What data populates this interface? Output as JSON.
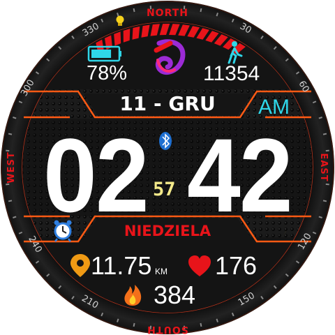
{
  "compass": {
    "north": "NORTH",
    "east": "EAST",
    "south": "SOUTH",
    "west": "WEST"
  },
  "bezel_numbers": {
    "n30": "30",
    "n60": "60",
    "n120": "120",
    "n150": "150",
    "n210": "210",
    "n240": "240",
    "n300": "300",
    "n330": "330"
  },
  "battery": {
    "value": "78%",
    "level": 0.78
  },
  "steps": {
    "value": "11354"
  },
  "date": {
    "text": "11 - GRU"
  },
  "ampm": "AM",
  "time": {
    "hour": "02",
    "minute": "42",
    "second": "57"
  },
  "weekday": "NIEDZIELA",
  "distance": {
    "value": "11.75",
    "unit": "KM"
  },
  "heart_rate": {
    "value": "176"
  },
  "calories": {
    "value": "384"
  },
  "colors": {
    "accent": "#ff5a14",
    "compass_red": "#e8141a",
    "ampm_cyan": "#2fd6e8",
    "seconds_yellow": "#f4ea8a",
    "battery_cyan": "#2fd6e8",
    "steps_cyan": "#2fd6e8"
  },
  "icons": {
    "battery": "battery-icon",
    "app_logo": "swirl-logo-icon",
    "steps": "walking-person-icon",
    "bluetooth": "bluetooth-icon",
    "alarm": "alarm-clock-icon",
    "moon": "crescent-moon-icon",
    "location": "location-pin-icon",
    "heart": "heart-icon",
    "fire": "fire-icon",
    "light": "lightbulb-icon"
  }
}
